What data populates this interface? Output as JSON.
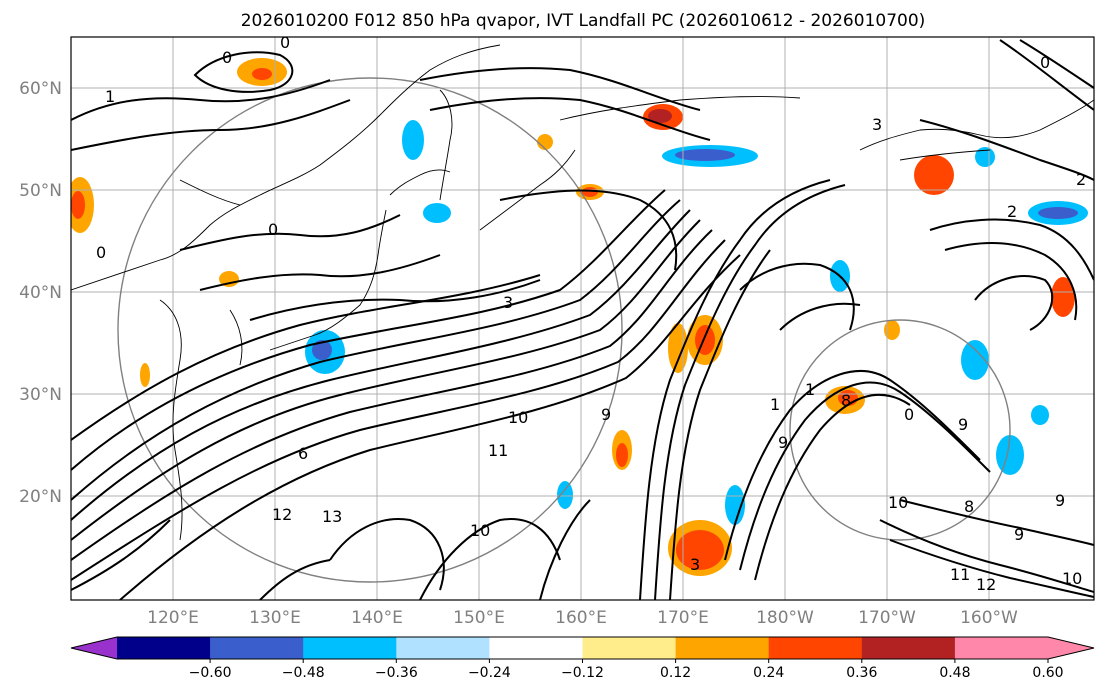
{
  "title": "2026010200 F012 850 hPa qvapor, IVT Landfall PC (2026010612 - 2026010700)",
  "map": {
    "lat_ticks": [
      "20°N",
      "30°N",
      "40°N",
      "50°N",
      "60°N"
    ],
    "lon_ticks": [
      "120°E",
      "130°E",
      "140°E",
      "150°E",
      "160°E",
      "170°E",
      "180°W",
      "170°W",
      "160°W"
    ],
    "contour_labels": [
      "0",
      "0",
      "1",
      "0",
      "0",
      "3",
      "2",
      "2",
      "0",
      "1",
      "3",
      "6",
      "10",
      "11",
      "9",
      "1",
      "9",
      "8",
      "0",
      "9",
      "8",
      "12",
      "13",
      "10",
      "10",
      "9",
      "11",
      "12",
      "10",
      "9",
      "3"
    ]
  },
  "colorbar": {
    "ticks": [
      "−0.60",
      "−0.48",
      "−0.36",
      "−0.24",
      "−0.12",
      "0.12",
      "0.24",
      "0.36",
      "0.48",
      "0.60"
    ],
    "colors": [
      "#9932cc",
      "#00008b",
      "#3a5fcd",
      "#00bfff",
      "#b0e2ff",
      "#ffffff",
      "#ffec8b",
      "#ffa500",
      "#ff4500",
      "#b22222",
      "#ff88aa",
      "#ff88aa"
    ]
  }
}
